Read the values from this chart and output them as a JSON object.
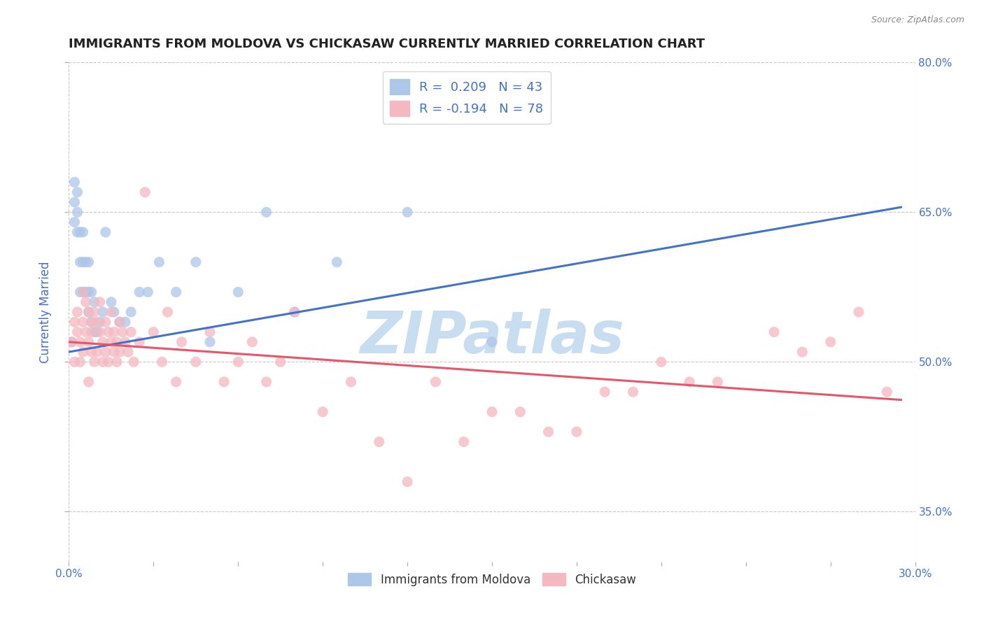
{
  "title": "IMMIGRANTS FROM MOLDOVA VS CHICKASAW CURRENTLY MARRIED CORRELATION CHART",
  "source": "Source: ZipAtlas.com",
  "ylabel": "Currently Married",
  "xlim": [
    0.0,
    0.3
  ],
  "ylim": [
    0.3,
    0.8
  ],
  "yticks": [
    0.35,
    0.5,
    0.65,
    0.8
  ],
  "ytick_labels": [
    "35.0%",
    "50.0%",
    "65.0%",
    "80.0%"
  ],
  "xtick_labels": [
    "0.0%",
    "30.0%"
  ],
  "legend_items": [
    {
      "label": "R =  0.209   N = 43",
      "color": "#aec6e8"
    },
    {
      "label": "R = -0.194   N = 78",
      "color": "#f4b8c1"
    }
  ],
  "series1_x": [
    0.001,
    0.002,
    0.002,
    0.002,
    0.003,
    0.003,
    0.003,
    0.004,
    0.004,
    0.004,
    0.005,
    0.005,
    0.005,
    0.006,
    0.006,
    0.007,
    0.007,
    0.007,
    0.008,
    0.008,
    0.009,
    0.009,
    0.01,
    0.011,
    0.012,
    0.013,
    0.015,
    0.016,
    0.018,
    0.02,
    0.022,
    0.025,
    0.028,
    0.032,
    0.038,
    0.045,
    0.05,
    0.06,
    0.07,
    0.08,
    0.095,
    0.12,
    0.15
  ],
  "series1_y": [
    0.52,
    0.64,
    0.66,
    0.68,
    0.63,
    0.65,
    0.67,
    0.57,
    0.6,
    0.63,
    0.57,
    0.6,
    0.63,
    0.57,
    0.6,
    0.55,
    0.57,
    0.6,
    0.54,
    0.57,
    0.53,
    0.56,
    0.53,
    0.54,
    0.55,
    0.63,
    0.56,
    0.55,
    0.54,
    0.54,
    0.55,
    0.57,
    0.57,
    0.6,
    0.57,
    0.6,
    0.52,
    0.57,
    0.65,
    0.55,
    0.6,
    0.65,
    0.52
  ],
  "series2_x": [
    0.001,
    0.002,
    0.002,
    0.003,
    0.003,
    0.004,
    0.004,
    0.005,
    0.005,
    0.005,
    0.006,
    0.006,
    0.007,
    0.007,
    0.007,
    0.008,
    0.008,
    0.008,
    0.009,
    0.009,
    0.01,
    0.01,
    0.011,
    0.011,
    0.012,
    0.012,
    0.013,
    0.013,
    0.014,
    0.014,
    0.015,
    0.015,
    0.016,
    0.016,
    0.017,
    0.017,
    0.018,
    0.018,
    0.019,
    0.02,
    0.021,
    0.022,
    0.023,
    0.025,
    0.027,
    0.03,
    0.033,
    0.035,
    0.038,
    0.04,
    0.045,
    0.05,
    0.055,
    0.06,
    0.065,
    0.07,
    0.075,
    0.08,
    0.09,
    0.1,
    0.11,
    0.13,
    0.15,
    0.17,
    0.19,
    0.21,
    0.23,
    0.25,
    0.26,
    0.27,
    0.28,
    0.29,
    0.12,
    0.14,
    0.16,
    0.18,
    0.2,
    0.22
  ],
  "series2_y": [
    0.52,
    0.54,
    0.5,
    0.53,
    0.55,
    0.52,
    0.5,
    0.54,
    0.57,
    0.51,
    0.53,
    0.56,
    0.52,
    0.55,
    0.48,
    0.54,
    0.51,
    0.53,
    0.55,
    0.5,
    0.54,
    0.51,
    0.53,
    0.56,
    0.5,
    0.52,
    0.54,
    0.51,
    0.53,
    0.5,
    0.52,
    0.55,
    0.51,
    0.53,
    0.5,
    0.52,
    0.54,
    0.51,
    0.53,
    0.52,
    0.51,
    0.53,
    0.5,
    0.52,
    0.67,
    0.53,
    0.5,
    0.55,
    0.48,
    0.52,
    0.5,
    0.53,
    0.48,
    0.5,
    0.52,
    0.48,
    0.5,
    0.55,
    0.45,
    0.48,
    0.42,
    0.48,
    0.45,
    0.43,
    0.47,
    0.5,
    0.48,
    0.53,
    0.51,
    0.52,
    0.55,
    0.47,
    0.38,
    0.42,
    0.45,
    0.43,
    0.47,
    0.48
  ],
  "trend1_x": [
    0.0,
    0.295
  ],
  "trend1_y": [
    0.51,
    0.655
  ],
  "trend2_x": [
    0.0,
    0.295
  ],
  "trend2_y": [
    0.52,
    0.462
  ],
  "trend1_color": "#4472c4",
  "trend2_color": "#e8556a",
  "watermark": "ZIPatlas",
  "watermark_color": "#c8ddf0",
  "background_color": "#ffffff",
  "grid_color": "#c8c8c8",
  "title_fontsize": 13,
  "legend_text_color": "#4472c4",
  "axis_label_color": "#4472c4",
  "tick_label_color": "#4472c4",
  "bottom_legend": [
    {
      "label": "Immigrants from Moldova",
      "color": "#aec6e8"
    },
    {
      "label": "Chickasaw",
      "color": "#f4b8c1"
    }
  ]
}
